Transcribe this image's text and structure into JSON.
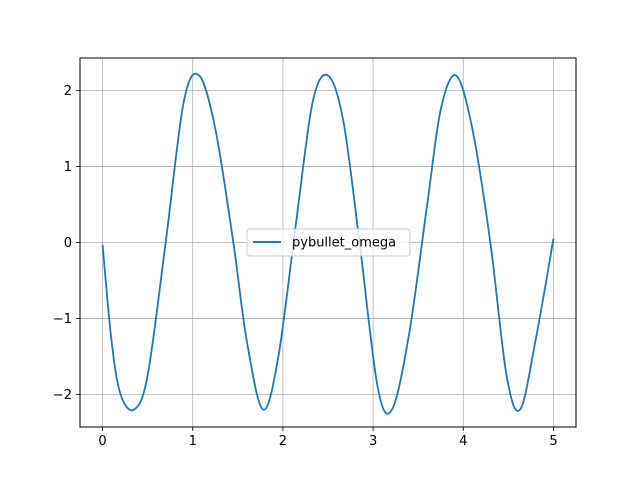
{
  "chart_data": {
    "type": "line",
    "title": "",
    "xlabel": "",
    "ylabel": "",
    "xlim": [
      -0.25,
      5.25
    ],
    "ylim": [
      -2.43,
      2.43
    ],
    "xticks": [
      0,
      1,
      2,
      3,
      4,
      5
    ],
    "yticks": [
      -2,
      -1,
      0,
      1,
      2
    ],
    "xtick_labels": [
      "0",
      "1",
      "2",
      "3",
      "4",
      "5"
    ],
    "ytick_labels": [
      "−2",
      "−1",
      "0",
      "1",
      "2"
    ],
    "grid": true,
    "legend": {
      "position": "center-right",
      "entries": [
        "pybullet_omega"
      ]
    },
    "series": [
      {
        "name": "pybullet_omega",
        "color": "#1f77b4",
        "x": [
          0.0,
          0.1,
          0.2,
          0.35,
          0.5,
          0.7,
          0.9,
          1.07,
          1.25,
          1.45,
          1.6,
          1.78,
          1.95,
          2.15,
          2.33,
          2.5,
          2.67,
          2.85,
          3.05,
          3.21,
          3.4,
          3.6,
          3.75,
          3.92,
          4.1,
          4.3,
          4.48,
          4.63,
          4.8,
          5.0
        ],
        "y": [
          -0.03,
          -1.3,
          -2.0,
          -2.2,
          -1.75,
          0.0,
          1.85,
          2.2,
          1.5,
          0.0,
          -1.3,
          -2.2,
          -1.5,
          0.3,
          1.85,
          2.2,
          1.6,
          0.0,
          -1.9,
          -2.2,
          -1.2,
          0.5,
          1.75,
          2.2,
          1.5,
          0.0,
          -1.75,
          -2.2,
          -1.3,
          0.05
        ]
      }
    ]
  }
}
